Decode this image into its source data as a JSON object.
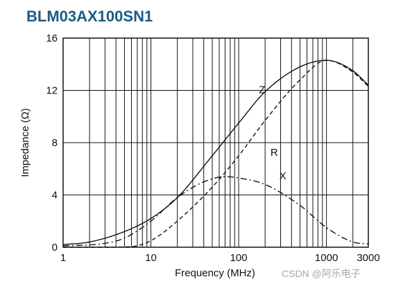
{
  "chart_data": {
    "type": "line",
    "title": "BLM03AX100SN1",
    "xlabel": "Frequency (MHz)",
    "ylabel": "Impedance (Ω)",
    "x_scale": "log",
    "xlim": [
      1,
      3000
    ],
    "ylim": [
      0,
      16
    ],
    "x_ticks": [
      "1",
      "10",
      "100",
      "1000",
      "3000"
    ],
    "y_ticks": [
      "0",
      "4",
      "8",
      "12",
      "16"
    ],
    "grid": true,
    "series": [
      {
        "name": "Z",
        "line_style": "solid",
        "points": [
          [
            1,
            0.2
          ],
          [
            2,
            0.4
          ],
          [
            5,
            1.2
          ],
          [
            10,
            2.2
          ],
          [
            20,
            3.8
          ],
          [
            50,
            7.0
          ],
          [
            100,
            9.5
          ],
          [
            200,
            11.9
          ],
          [
            500,
            13.8
          ],
          [
            1000,
            14.3
          ],
          [
            2000,
            13.5
          ],
          [
            3000,
            12.4
          ]
        ]
      },
      {
        "name": "R",
        "line_style": "dashed",
        "points": [
          [
            1,
            0.0
          ],
          [
            3,
            0.0
          ],
          [
            6,
            0.05
          ],
          [
            10,
            0.5
          ],
          [
            20,
            2.0
          ],
          [
            50,
            4.6
          ],
          [
            100,
            7.0
          ],
          [
            200,
            9.7
          ],
          [
            500,
            12.8
          ],
          [
            1000,
            14.3
          ],
          [
            2000,
            13.4
          ],
          [
            3000,
            12.3
          ]
        ]
      },
      {
        "name": "X",
        "line_style": "dash-dot",
        "points": [
          [
            1,
            0.1
          ],
          [
            3,
            0.3
          ],
          [
            5,
            0.7
          ],
          [
            10,
            2.0
          ],
          [
            20,
            3.8
          ],
          [
            40,
            5.0
          ],
          [
            70,
            5.4
          ],
          [
            100,
            5.3
          ],
          [
            200,
            4.8
          ],
          [
            500,
            3.2
          ],
          [
            1000,
            1.5
          ],
          [
            2000,
            0.4
          ],
          [
            3000,
            0.25
          ]
        ]
      }
    ]
  },
  "watermark": "CSDN @阿乐电子",
  "colors": {
    "title": "#1d5a86",
    "line": "#111111",
    "grid": "#111111"
  }
}
